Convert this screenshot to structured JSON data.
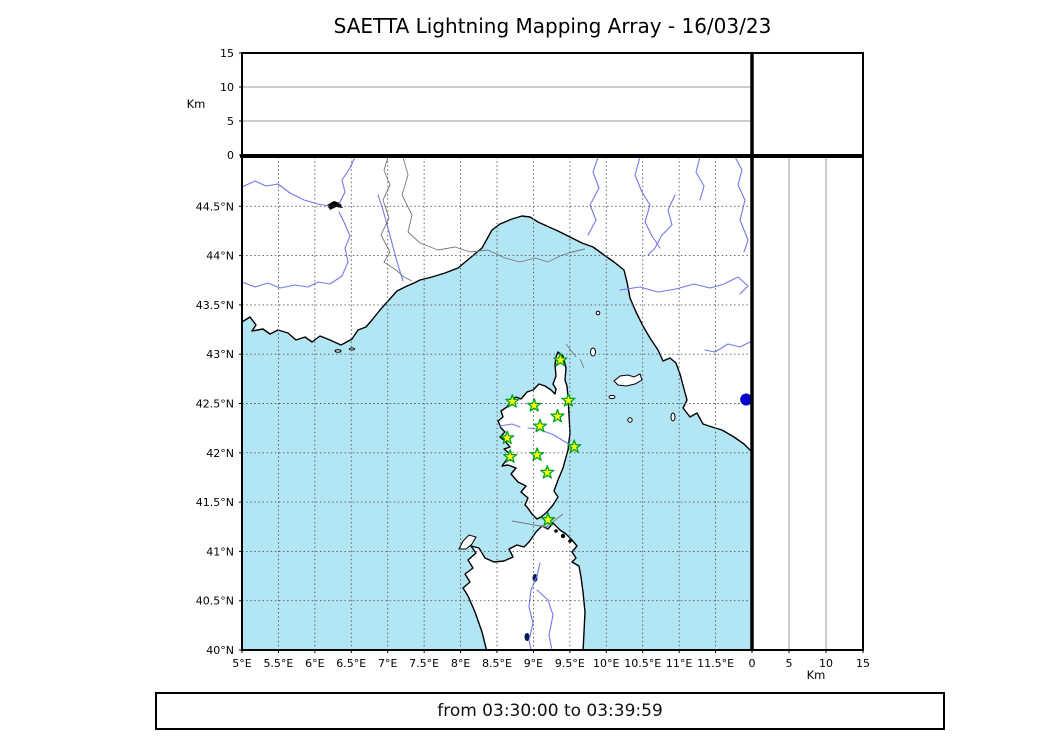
{
  "title": "SAETTA Lightning Mapping Array - 16/03/23",
  "footer": {
    "text": "from 03:30:00 to 03:39:59"
  },
  "axes": {
    "km_label": "Km",
    "altitude_ticks": [
      0,
      5,
      10,
      15
    ],
    "altitude_gridlines": [
      5,
      10
    ],
    "altitude_range_km": [
      0,
      15
    ],
    "longitude_range_deg": [
      5,
      12
    ],
    "latitude_range_deg": [
      40,
      45
    ],
    "grid_step_deg": 0.5,
    "longitude_tick_labels": [
      "5°E",
      "5.5°E",
      "6°E",
      "6.5°E",
      "7°E",
      "7.5°E",
      "8°E",
      "8.5°E",
      "9°E",
      "9.5°E",
      "10°E",
      "10.5°E",
      "11°E",
      "11.5°E"
    ],
    "latitude_tick_labels": [
      "40°N",
      "40.5°N",
      "41°N",
      "41.5°N",
      "42°N",
      "42.5°N",
      "43°N",
      "43.5°N",
      "44°N",
      "44.5°N"
    ]
  },
  "chart_data": {
    "type": "scatter",
    "title": "SAETTA Lightning Mapping Array - 16/03/23",
    "panels": [
      {
        "id": "altitude-vs-longitude",
        "xlim": [
          5,
          12
        ],
        "ylim_km": [
          0,
          15
        ],
        "points": []
      },
      {
        "id": "map",
        "xlim_deg_e": [
          5,
          12
        ],
        "ylim_deg_n": [
          40,
          45
        ],
        "grid": "dotted 0.5°"
      },
      {
        "id": "altitude-vs-latitude",
        "xlim_km": [
          0,
          15
        ],
        "ylim": [
          40,
          45
        ],
        "points": []
      }
    ],
    "stations_lon_lat": [
      [
        9.37,
        42.94
      ],
      [
        8.71,
        42.52
      ],
      [
        9.01,
        42.48
      ],
      [
        9.48,
        42.53
      ],
      [
        9.33,
        42.37
      ],
      [
        9.09,
        42.27
      ],
      [
        8.64,
        42.15
      ],
      [
        9.56,
        42.06
      ],
      [
        9.05,
        41.98
      ],
      [
        8.68,
        41.96
      ],
      [
        9.19,
        41.8
      ],
      [
        9.2,
        41.32
      ]
    ],
    "lightning_sources_lon_lat": [
      [
        11.92,
        42.54
      ]
    ],
    "time_window": "from 03:30:00 to 03:39:59"
  },
  "colors": {
    "sea": "#b3e6f5",
    "land": "#ffffff",
    "coastline": "#000000",
    "river": "#7577ee",
    "admin_border": "#777777",
    "grid": "#555555",
    "panel_grid": "#999999",
    "station_fill": "#ffff00",
    "station_edge": "#00a321",
    "source_dot": "#0000cc"
  }
}
